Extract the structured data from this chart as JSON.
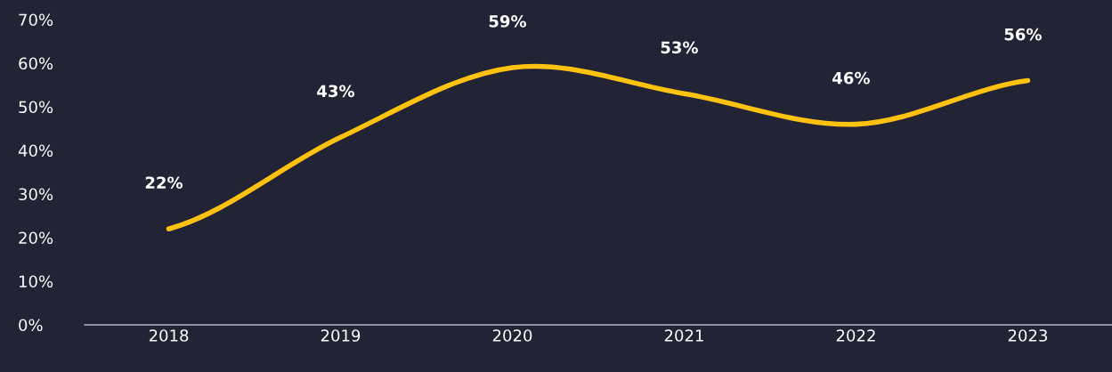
{
  "chart_data": {
    "type": "line",
    "categories": [
      "2018",
      "2019",
      "2020",
      "2021",
      "2022",
      "2023"
    ],
    "series": [
      {
        "color": "#ffc20e",
        "values": [
          22,
          43,
          59,
          53,
          46,
          56
        ]
      }
    ],
    "value_labels": [
      "22%",
      "43%",
      "59%",
      "53%",
      "46%",
      "56%"
    ],
    "ylim": [
      0,
      70
    ],
    "yticks": [
      {
        "value": 0,
        "label": "0%"
      },
      {
        "value": 10,
        "label": "10%"
      },
      {
        "value": 20,
        "label": "20%"
      },
      {
        "value": 30,
        "label": "30%"
      },
      {
        "value": 40,
        "label": "40%"
      },
      {
        "value": 50,
        "label": "50%"
      },
      {
        "value": 60,
        "label": "60%"
      },
      {
        "value": 70,
        "label": "70%"
      }
    ],
    "grid": false,
    "marker": "none",
    "line_style": "solid"
  }
}
